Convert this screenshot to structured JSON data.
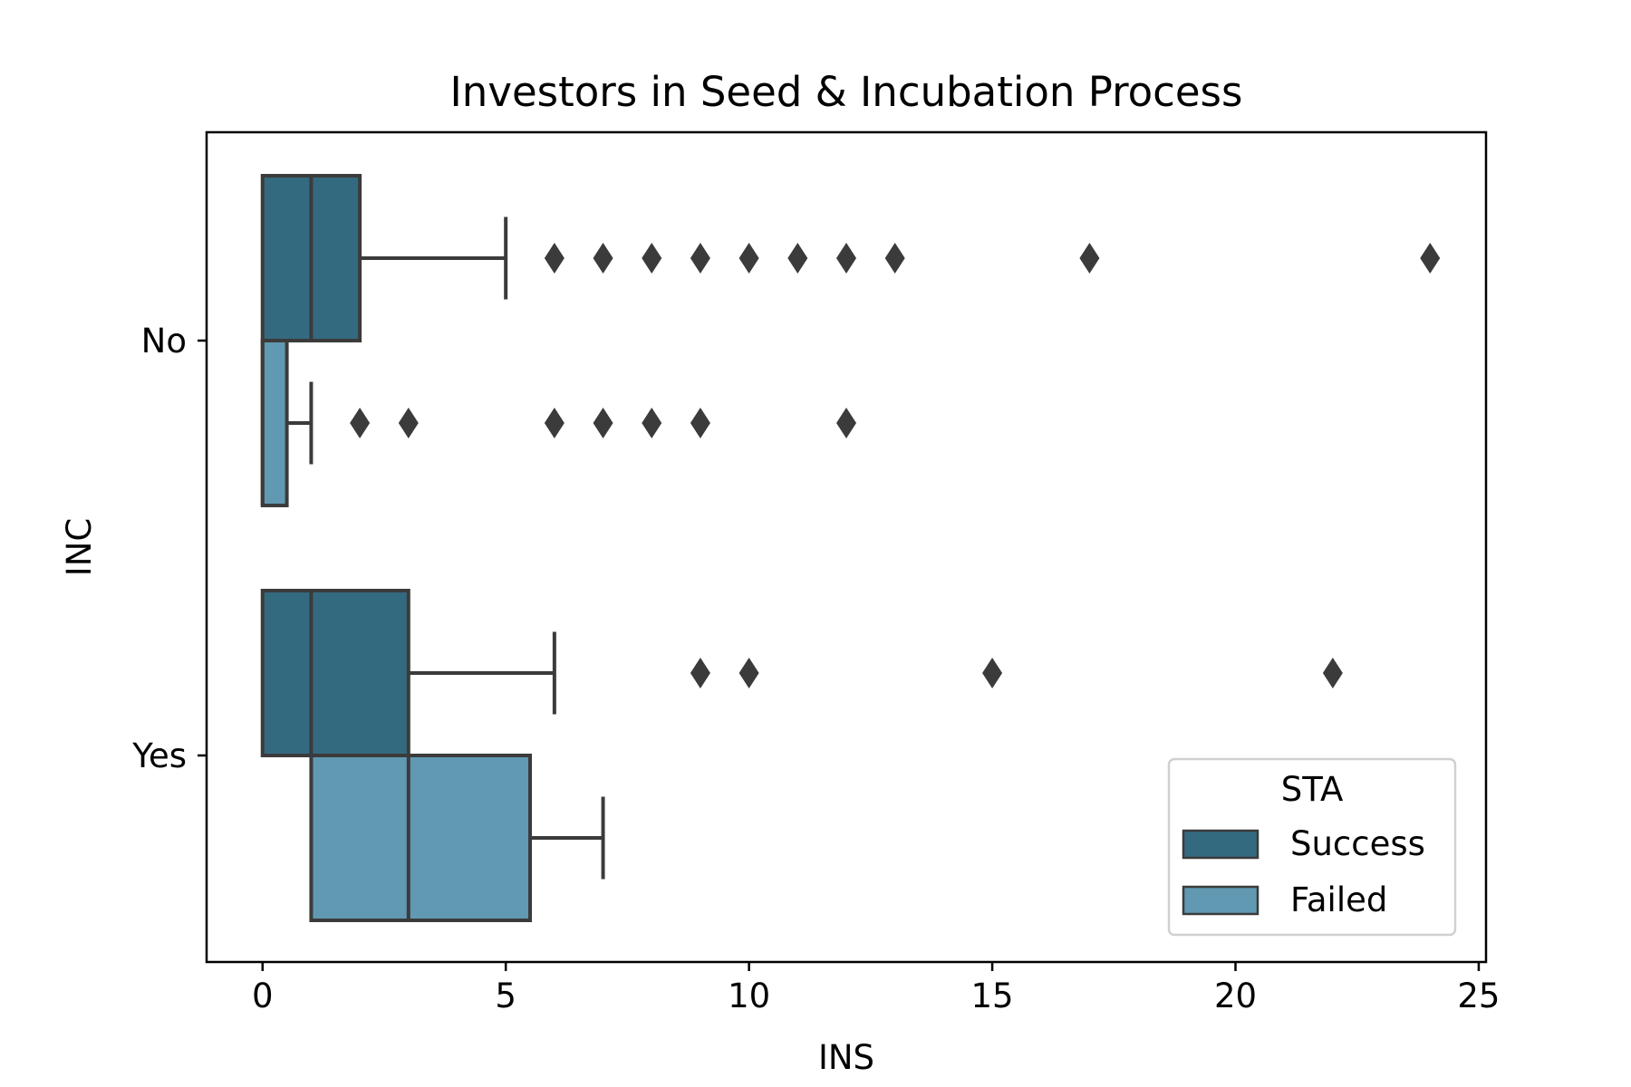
{
  "chart_data": {
    "type": "boxplot",
    "title": "Investors in Seed & Incubation Process",
    "xlabel": "INS",
    "ylabel": "INC",
    "xlim": [
      -1.15,
      25.15
    ],
    "xticks": [
      0,
      5,
      10,
      15,
      20,
      25
    ],
    "xtick_labels": [
      "0",
      "5",
      "10",
      "15",
      "20",
      "25"
    ],
    "categories": [
      "No",
      "Yes"
    ],
    "grid": false,
    "legend": {
      "title": "STA",
      "position": "lower-right"
    },
    "series": [
      {
        "name": "Success",
        "color": "#346a80",
        "boxes": [
          {
            "category": "No",
            "whisker_low": 0,
            "q1": 0,
            "median": 1,
            "q3": 2,
            "whisker_high": 5,
            "outliers": [
              6,
              7,
              8,
              9,
              10,
              11,
              12,
              13,
              17,
              24
            ]
          },
          {
            "category": "Yes",
            "whisker_low": 0,
            "q1": 0,
            "median": 1,
            "q3": 3,
            "whisker_high": 6,
            "outliers": [
              9,
              10,
              15,
              22
            ]
          }
        ]
      },
      {
        "name": "Failed",
        "color": "#6199b3",
        "boxes": [
          {
            "category": "No",
            "whisker_low": 0,
            "q1": 0,
            "median": 0,
            "q3": 0.5,
            "whisker_high": 1,
            "outliers": [
              2,
              3,
              6,
              7,
              8,
              9,
              12
            ]
          },
          {
            "category": "Yes",
            "whisker_low": 1,
            "q1": 1,
            "median": 3,
            "q3": 5.5,
            "whisker_high": 7,
            "outliers": []
          }
        ]
      }
    ]
  }
}
